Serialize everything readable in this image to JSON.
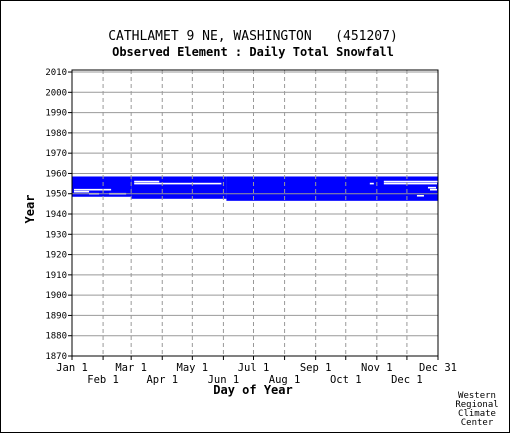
{
  "chart_data": {
    "type": "heatmap",
    "title": "CATHLAMET 9 NE, WASHINGTON   (451207)",
    "subtitle": "Observed Element : Daily Total Snowfall",
    "xlabel": "Day of Year",
    "ylabel": "Year",
    "xlim": [
      1,
      366
    ],
    "ylim": [
      1870,
      2011
    ],
    "grid": true,
    "series_color": "#0000ff",
    "x_ticks_top": [
      {
        "label": "Jan 1",
        "day": 1
      },
      {
        "label": "Mar 1",
        "day": 60
      },
      {
        "label": "May 1",
        "day": 121
      },
      {
        "label": "Jul 1",
        "day": 182
      },
      {
        "label": "Sep 1",
        "day": 244
      },
      {
        "label": "Nov 1",
        "day": 305
      },
      {
        "label": "Dec 31",
        "day": 366
      }
    ],
    "x_ticks_bottom": [
      {
        "label": "Feb 1",
        "day": 32
      },
      {
        "label": "Apr 1",
        "day": 91
      },
      {
        "label": "Jun 1",
        "day": 152
      },
      {
        "label": "Aug 1",
        "day": 213
      },
      {
        "label": "Oct 1",
        "day": 274
      },
      {
        "label": "Dec 1",
        "day": 335
      }
    ],
    "y_ticks": [
      2010,
      2000,
      1990,
      1980,
      1970,
      1960,
      1950,
      1940,
      1930,
      1920,
      1910,
      1900,
      1890,
      1880,
      1870
    ],
    "coverage_bands": [
      {
        "start_day": 1,
        "end_day": 60,
        "from_year": 1949,
        "to_year": 1958
      },
      {
        "start_day": 60,
        "end_day": 155,
        "from_year": 1948,
        "to_year": 1958
      },
      {
        "start_day": 155,
        "end_day": 366,
        "from_year": 1947,
        "to_year": 1958
      }
    ],
    "gaps": [
      {
        "start_day": 3,
        "end_day": 40,
        "year": 1952
      },
      {
        "start_day": 3,
        "end_day": 18,
        "year": 1951
      },
      {
        "start_day": 18,
        "end_day": 28,
        "year": 1950
      },
      {
        "start_day": 38,
        "end_day": 55,
        "year": 1950
      },
      {
        "start_day": 63,
        "end_day": 88,
        "year": 1956
      },
      {
        "start_day": 63,
        "end_day": 150,
        "year": 1955
      },
      {
        "start_day": 312,
        "end_day": 366,
        "year": 1956
      },
      {
        "start_day": 312,
        "end_day": 365,
        "year": 1955
      },
      {
        "start_day": 298,
        "end_day": 302,
        "year": 1955
      },
      {
        "start_day": 356,
        "end_day": 364,
        "year": 1953
      },
      {
        "start_day": 358,
        "end_day": 365,
        "year": 1952
      },
      {
        "start_day": 345,
        "end_day": 352,
        "year": 1949
      }
    ]
  },
  "credit": [
    "Western",
    "Regional",
    "Climate",
    "Center"
  ]
}
